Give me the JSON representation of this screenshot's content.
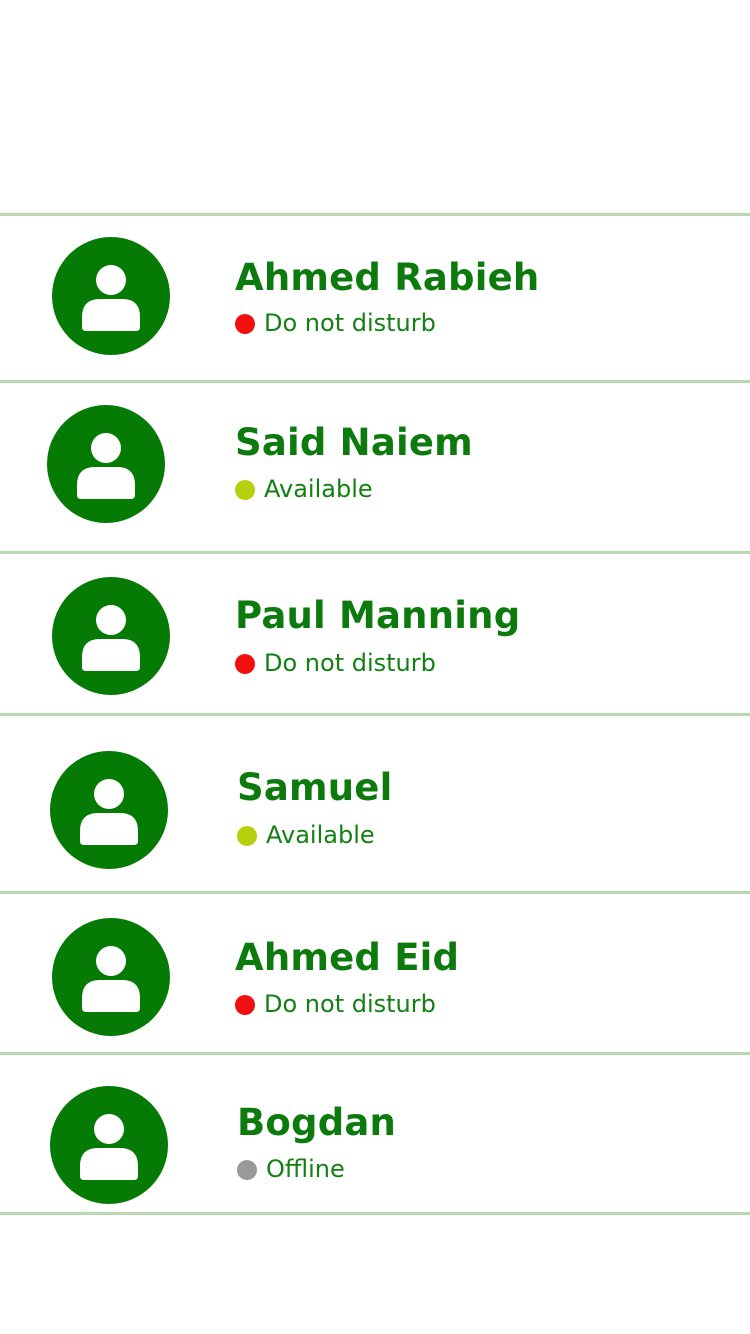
{
  "statuses": {
    "dnd": {
      "label": "Do not disturb",
      "color": "#f01010"
    },
    "available": {
      "label": "Available",
      "color": "#b5d10e"
    },
    "offline": {
      "label": "Offline",
      "color": "#999999"
    }
  },
  "contacts": [
    {
      "name": "Ahmed Rabieh",
      "status": "Do not disturb",
      "status_color": "#f01010",
      "avatar_icon": "user-icon"
    },
    {
      "name": "Said Naiem",
      "status": "Available",
      "status_color": "#b5d10e",
      "avatar_icon": "user-icon"
    },
    {
      "name": "Paul Manning",
      "status": "Do not disturb",
      "status_color": "#f01010",
      "avatar_icon": "user-icon"
    },
    {
      "name": "Samuel",
      "status": "Available",
      "status_color": "#b5d10e",
      "avatar_icon": "user-icon"
    },
    {
      "name": "Ahmed Eid",
      "status": "Do not disturb",
      "status_color": "#f01010",
      "avatar_icon": "user-icon"
    },
    {
      "name": "Bogdan",
      "status": "Offline",
      "status_color": "#999999",
      "avatar_icon": "user-icon"
    }
  ],
  "colors": {
    "accent": "#057a05",
    "name_text": "#0d7a0d",
    "divider": "#b9d8b2",
    "background": "#ffffff"
  }
}
